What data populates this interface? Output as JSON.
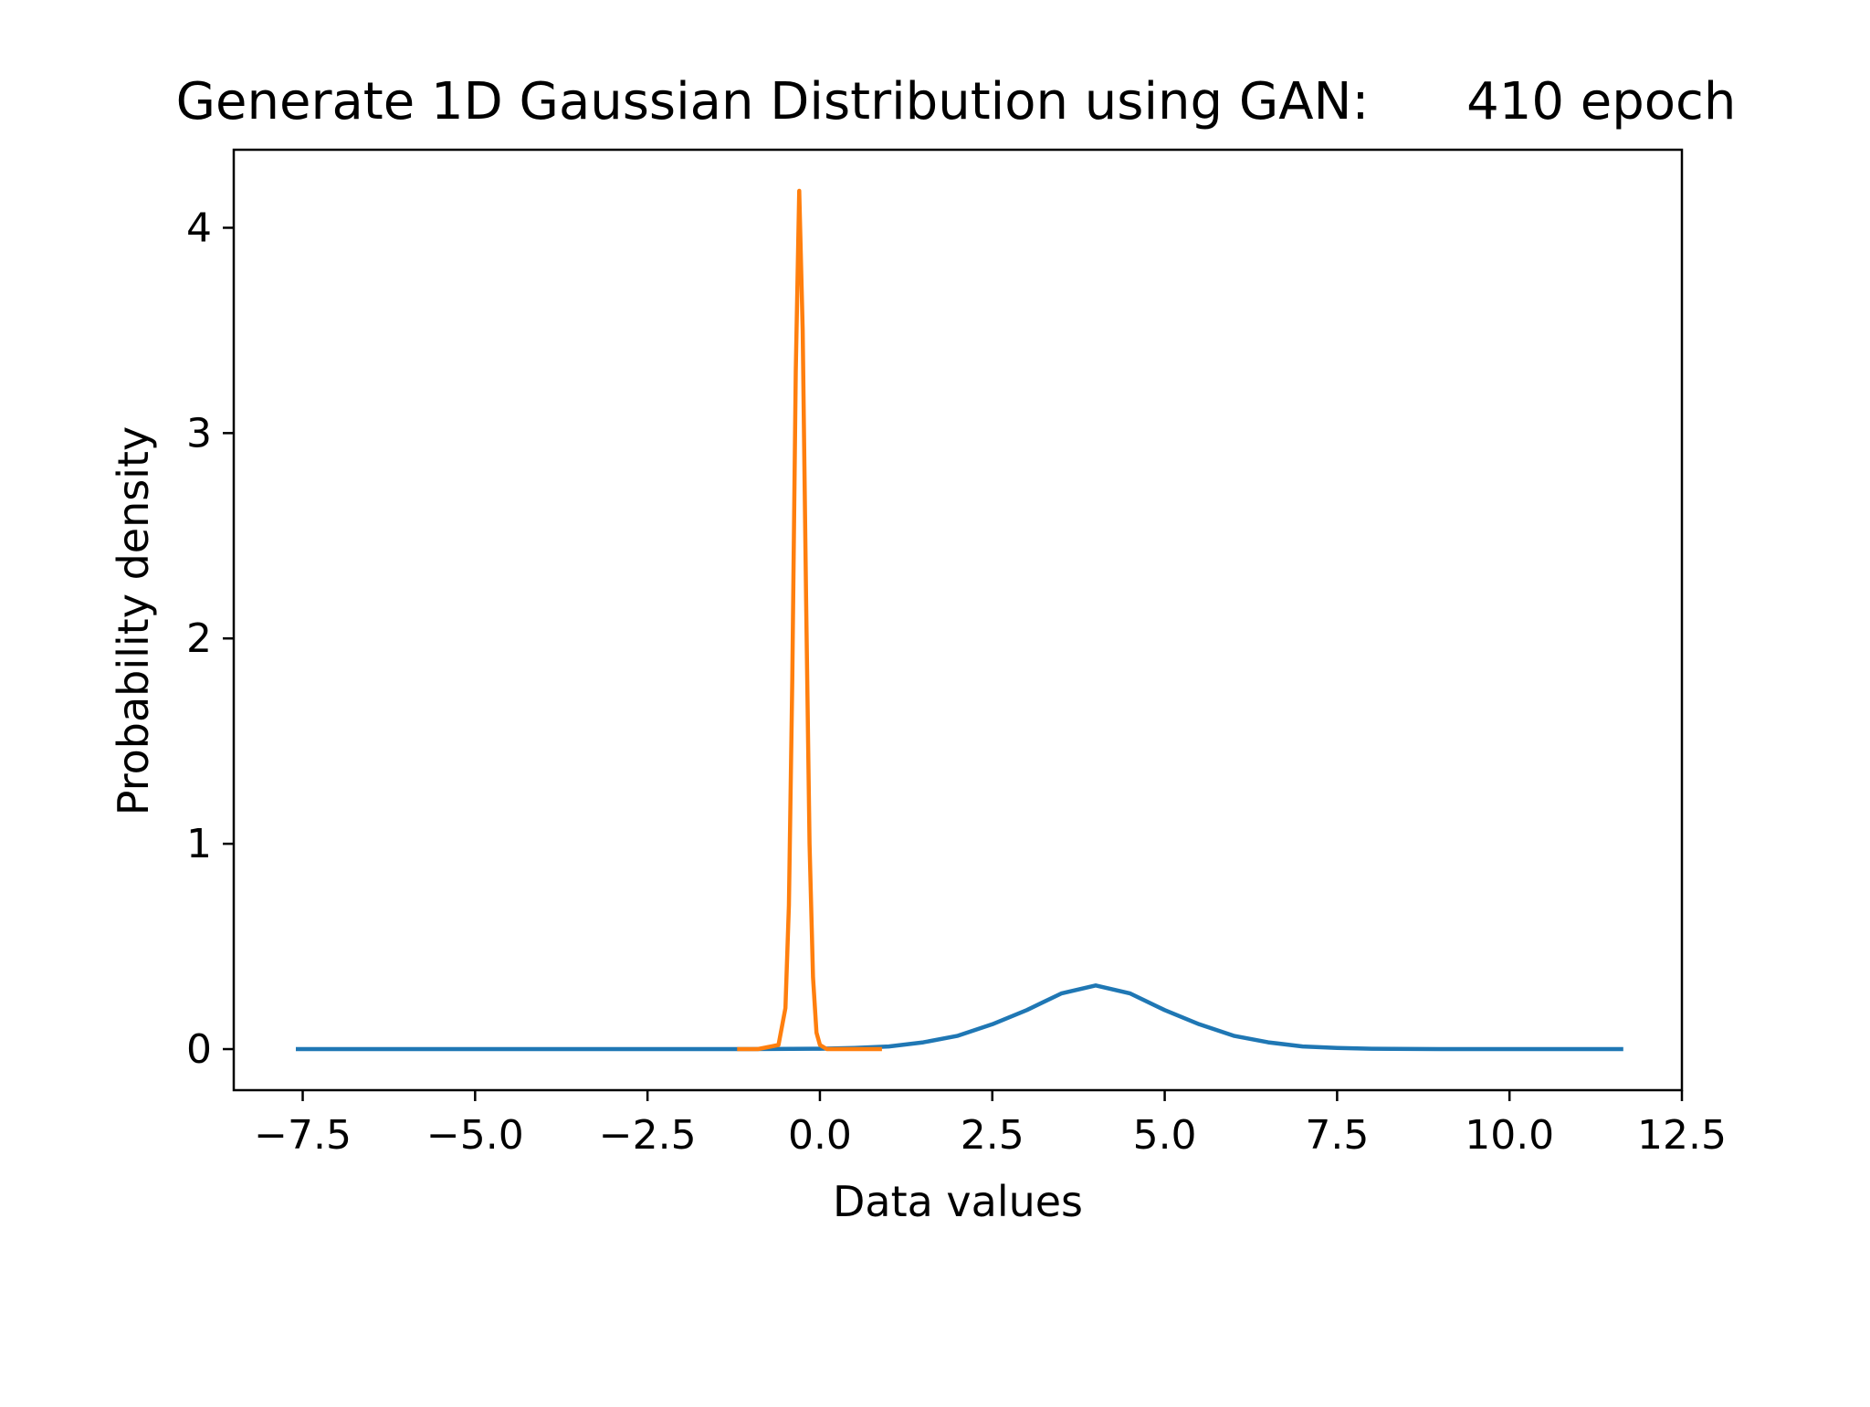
{
  "chart_data": {
    "type": "line",
    "title": "Generate 1D Gaussian Distribution using GAN:      410 epoch",
    "xlabel": "Data values",
    "ylabel": "Probability density",
    "xlim": [
      -8.5,
      12.5
    ],
    "ylim": [
      -0.2,
      4.38
    ],
    "x_ticks": [
      -7.5,
      -5.0,
      -2.5,
      0.0,
      2.5,
      5.0,
      7.5,
      10.0,
      12.5
    ],
    "x_tick_labels": [
      "−7.5",
      "−5.0",
      "−2.5",
      "0.0",
      "2.5",
      "5.0",
      "7.5",
      "10.0",
      "12.5"
    ],
    "y_ticks": [
      0,
      1,
      2,
      3,
      4
    ],
    "y_tick_labels": [
      "0",
      "1",
      "2",
      "3",
      "4"
    ],
    "grid": false,
    "legend": "none",
    "series": [
      {
        "color": "#1f77b4",
        "x": [
          -7.6,
          -2.0,
          -1.0,
          0.0,
          0.5,
          1.0,
          1.5,
          2.0,
          2.5,
          3.0,
          3.5,
          4.0,
          4.5,
          5.0,
          5.5,
          6.0,
          6.5,
          7.0,
          7.5,
          8.0,
          9.0,
          11.65
        ],
        "y": [
          0.0,
          0.0,
          0.0,
          0.002,
          0.006,
          0.013,
          0.033,
          0.065,
          0.121,
          0.19,
          0.271,
          0.31,
          0.271,
          0.19,
          0.121,
          0.065,
          0.033,
          0.013,
          0.006,
          0.002,
          0.0,
          0.0
        ]
      },
      {
        "color": "#ff7f0e",
        "x": [
          -1.2,
          -0.9,
          -0.6,
          -0.5,
          -0.45,
          -0.4,
          -0.35,
          -0.3,
          -0.25,
          -0.2,
          -0.15,
          -0.1,
          -0.05,
          0.0,
          0.1,
          0.3,
          0.6,
          0.9
        ],
        "y": [
          0.0,
          0.0,
          0.02,
          0.2,
          0.7,
          1.8,
          3.3,
          4.18,
          3.5,
          2.2,
          1.0,
          0.35,
          0.08,
          0.02,
          0.0,
          0.0,
          0.0,
          0.0
        ]
      }
    ]
  }
}
